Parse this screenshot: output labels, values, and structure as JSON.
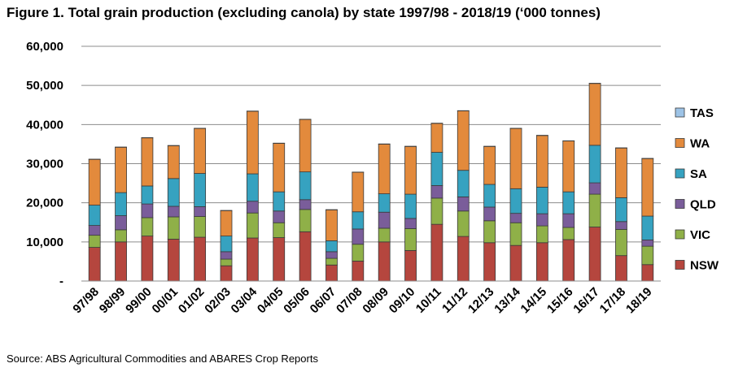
{
  "title": "Figure 1. Total grain production (excluding canola) by state 1997/98 - 2018/19 (‘000 tonnes)",
  "source": "Source: ABS Agricultural Commodities and ABARES Crop Reports",
  "chart_data": {
    "type": "bar",
    "stacked": true,
    "title": "Figure 1. Total grain production (excluding canola) by state 1997/98 - 2018/19 (‘000 tonnes)",
    "xlabel": "",
    "ylabel": "",
    "ylim": [
      0,
      60000
    ],
    "yticks": [
      0,
      10000,
      20000,
      30000,
      40000,
      50000,
      60000
    ],
    "ytick_labels": [
      "-",
      "10,000",
      "20,000",
      "30,000",
      "40,000",
      "50,000",
      "60,000"
    ],
    "grid": true,
    "legend_position": "right",
    "categories": [
      "97/98",
      "98/99",
      "99/00",
      "00/01",
      "01/02",
      "02/03",
      "03/04",
      "04/05",
      "05/06",
      "06/07",
      "07/08",
      "08/09",
      "09/10",
      "10/11",
      "11/12",
      "12/13",
      "13/14",
      "14/15",
      "15/16",
      "16/17",
      "17/18",
      "18/19"
    ],
    "series": [
      {
        "name": "NSW",
        "color": "#b5463e",
        "values": [
          8600,
          10000,
          11500,
          10700,
          11200,
          3900,
          11000,
          11100,
          12600,
          4100,
          5100,
          10000,
          7800,
          14500,
          11400,
          9800,
          9100,
          9800,
          10600,
          13800,
          6500,
          4200
        ]
      },
      {
        "name": "VIC",
        "color": "#8fb048",
        "values": [
          3100,
          3100,
          4700,
          5700,
          5300,
          1700,
          6400,
          3800,
          5700,
          1700,
          4300,
          3500,
          5600,
          6700,
          6500,
          5600,
          5800,
          4300,
          3100,
          8400,
          6700,
          4700
        ]
      },
      {
        "name": "QLD",
        "color": "#7a5d9a",
        "values": [
          2500,
          3600,
          3500,
          2700,
          2500,
          1900,
          3000,
          3000,
          2500,
          1700,
          3900,
          4100,
          2600,
          3200,
          3600,
          3500,
          2400,
          3100,
          3500,
          2900,
          2000,
          1600
        ]
      },
      {
        "name": "SA",
        "color": "#36a2c0",
        "values": [
          5200,
          5900,
          4600,
          7100,
          8500,
          4000,
          7000,
          4900,
          7100,
          2800,
          4400,
          4700,
          6200,
          8500,
          6800,
          5800,
          6300,
          6800,
          5600,
          9600,
          6100,
          6100
        ]
      },
      {
        "name": "WA",
        "color": "#e38a3c",
        "values": [
          11700,
          11600,
          12300,
          8400,
          11500,
          6500,
          16000,
          12400,
          13400,
          7900,
          10100,
          12700,
          12200,
          7400,
          15200,
          9700,
          15400,
          13200,
          13000,
          15800,
          12700,
          14700
        ]
      },
      {
        "name": "TAS",
        "color": "#9dc3e6",
        "values": [
          50,
          50,
          50,
          50,
          50,
          50,
          50,
          50,
          50,
          50,
          50,
          50,
          50,
          50,
          50,
          50,
          50,
          50,
          50,
          50,
          50,
          50
        ]
      }
    ]
  }
}
